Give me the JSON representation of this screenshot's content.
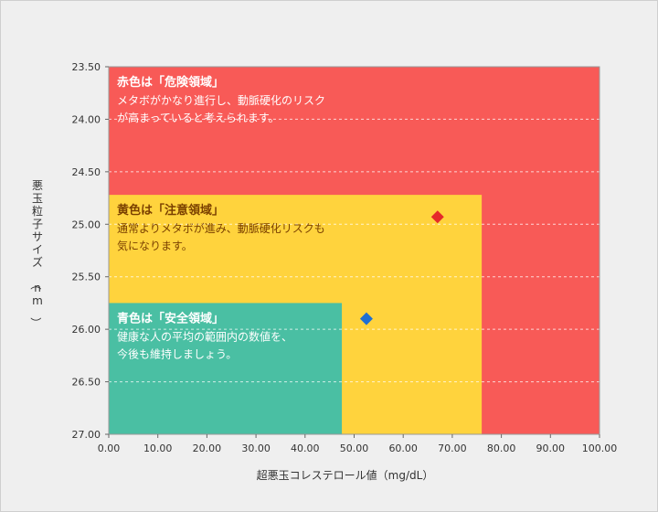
{
  "chart_data": {
    "type": "scatter",
    "xlabel": "超悪玉コレステロール値（mg/dL）",
    "ylabel": "悪玉粒子サイズ（nm）",
    "xlim": [
      0,
      100
    ],
    "ylim": [
      23.5,
      27.0
    ],
    "y_inverted": true,
    "x_ticks": [
      "0.00",
      "10.00",
      "20.00",
      "30.00",
      "40.00",
      "50.00",
      "60.00",
      "70.00",
      "80.00",
      "90.00",
      "100.00"
    ],
    "y_ticks": [
      "23.50",
      "24.00",
      "24.50",
      "25.00",
      "25.50",
      "26.00",
      "26.50",
      "27.00"
    ],
    "grid": "horizontal dashed",
    "zones": [
      {
        "name": "danger",
        "title": "赤色は「危険領域」",
        "lines": [
          "メタボがかなり進行し、動脈硬化のリスク",
          "が高まっていると考えられます。"
        ],
        "x_max": 100,
        "y_from": 23.5,
        "fill": "#f85a57",
        "text_color": "#ffffff"
      },
      {
        "name": "caution",
        "title": "黄色は「注意領域」",
        "lines": [
          "通常よりメタボが進み、動脈硬化リスクも",
          "気になります。"
        ],
        "x_max": 76,
        "y_from": 24.72,
        "fill": "#ffd33d",
        "text_color": "#7a4000"
      },
      {
        "name": "safe",
        "title": "青色は「安全領域」",
        "lines": [
          "健康な人の平均の範囲内の数値を、",
          "今後も維持しましょう。"
        ],
        "x_max": 47.5,
        "y_from": 25.75,
        "fill": "#4abfa3",
        "text_color": "#ffffff"
      }
    ],
    "points": [
      {
        "x": 67,
        "y": 24.93,
        "color": "#e52a2a",
        "shape": "diamond"
      },
      {
        "x": 52.5,
        "y": 25.9,
        "color": "#1f6fd4",
        "shape": "diamond"
      }
    ]
  }
}
